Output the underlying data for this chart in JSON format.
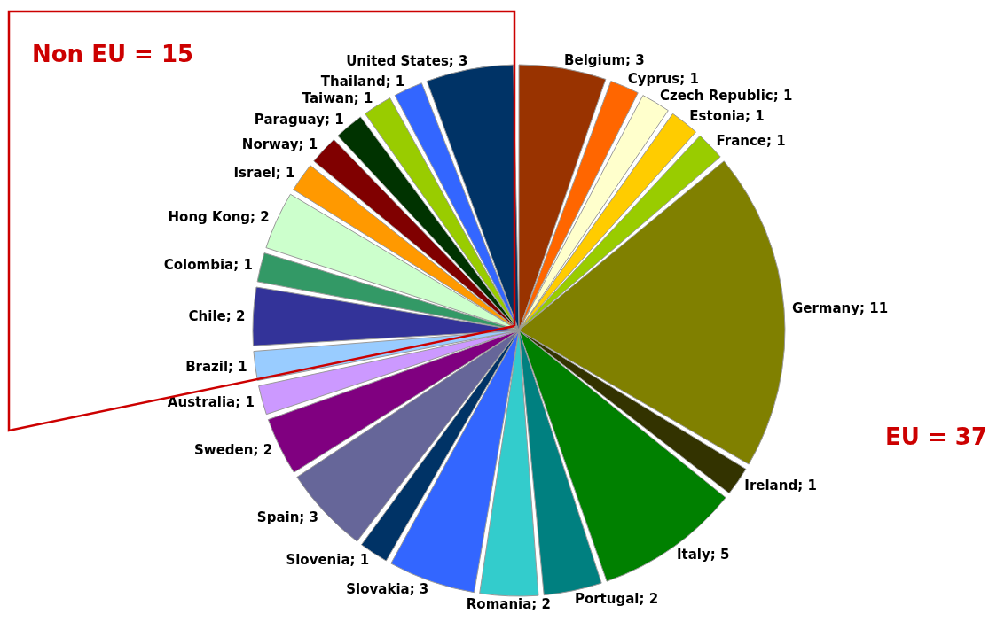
{
  "chart_data": {
    "type": "pie",
    "categories": [
      "Belgium",
      "Cyprus",
      "Czech Republic",
      "Estonia",
      "France",
      "Germany",
      "Ireland",
      "Italy",
      "Portugal",
      "Romania",
      "Slovakia",
      "Slovenia",
      "Spain",
      "Sweden",
      "Australia",
      "Brazil",
      "Chile",
      "Colombia",
      "Hong Kong",
      "Israel",
      "Norway",
      "Paraguay",
      "Taiwan",
      "Thailand",
      "United States"
    ],
    "values": [
      3,
      1,
      1,
      1,
      1,
      11,
      1,
      5,
      2,
      2,
      3,
      1,
      3,
      2,
      1,
      1,
      2,
      1,
      2,
      1,
      1,
      1,
      1,
      1,
      3
    ],
    "colors": [
      "#993300",
      "#ff6600",
      "#ffffcc",
      "#ffcc00",
      "#99cc00",
      "#808000",
      "#333300",
      "#008000",
      "#008080",
      "#33cccc",
      "#3366ff",
      "#003366",
      "#666699",
      "#800080",
      "#cc99ff",
      "#99ccff",
      "#333399",
      "#339966",
      "#ccffcc",
      "#ff9900",
      "#800000",
      "#003300",
      "#99cc00",
      "#3366ff",
      "#003366"
    ],
    "value_labels": [
      "; 3",
      "; 1",
      "; 1",
      "; 1",
      "; 1",
      "; 11",
      "; 1",
      "; 5",
      "; 2",
      "; 2",
      "; 3",
      "; 1",
      "; 3",
      "; 2",
      "; 1",
      "; 1",
      "; 2",
      "; 1",
      "; 2",
      "; 1",
      "; 1",
      "; 1",
      "; 1",
      "; 1",
      "; 3"
    ],
    "annotations": [
      "Non EU = 15",
      "EU = 37"
    ]
  }
}
